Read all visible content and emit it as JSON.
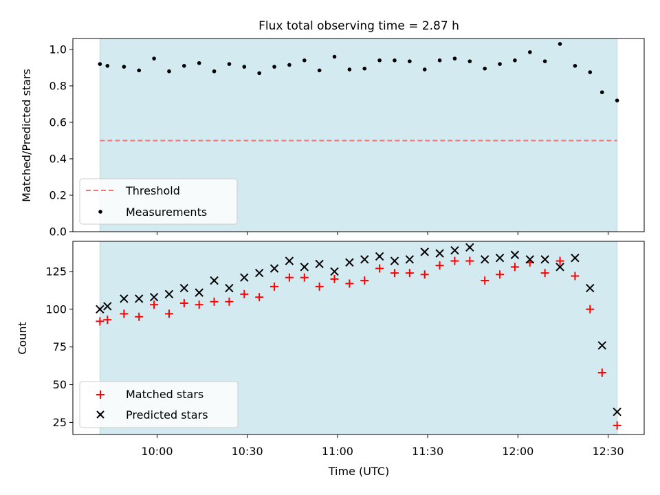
{
  "chart_data": [
    {
      "type": "scatter",
      "title": "Flux total observing time = 2.87 h",
      "xlabel": "",
      "ylabel": "Matched/Predicted stars",
      "ylim": [
        0.0,
        1.06
      ],
      "yticks": [
        0.0,
        0.2,
        0.4,
        0.6,
        0.8,
        1.0
      ],
      "ytick_labels": [
        "0.0",
        "0.2",
        "0.4",
        "0.6",
        "0.8",
        "1.0"
      ],
      "xlim_minutes": [
        572,
        762
      ],
      "xticks_minutes": [
        600,
        630,
        660,
        690,
        720,
        750
      ],
      "shaded_span_minutes": [
        581,
        753
      ],
      "threshold": 0.5,
      "legend_loc": "lower-left",
      "legend": [
        "Threshold",
        "Measurements"
      ],
      "series": [
        {
          "name": "Measurements",
          "x": [
            581,
            583.5,
            589,
            594,
            599,
            604,
            609,
            614,
            619,
            624,
            629,
            634,
            639,
            644,
            649,
            654,
            659,
            664,
            669,
            674,
            679,
            684,
            689,
            694,
            699,
            704,
            709,
            714,
            719,
            724,
            729,
            734,
            739,
            744,
            748,
            753
          ],
          "y": [
            0.92,
            0.91,
            0.905,
            0.885,
            0.95,
            0.88,
            0.91,
            0.925,
            0.88,
            0.92,
            0.905,
            0.87,
            0.905,
            0.915,
            0.94,
            0.885,
            0.96,
            0.89,
            0.895,
            0.94,
            0.94,
            0.935,
            0.89,
            0.94,
            0.95,
            0.935,
            0.895,
            0.92,
            0.94,
            0.985,
            0.935,
            1.03,
            0.91,
            0.875,
            0.765,
            0.72
          ]
        }
      ]
    },
    {
      "type": "scatter",
      "title": "",
      "xlabel": "Time (UTC)",
      "ylabel": "Count",
      "ylim": [
        17,
        145
      ],
      "yticks": [
        25,
        50,
        75,
        100,
        125
      ],
      "ytick_labels": [
        "25",
        "50",
        "75",
        "100",
        "125"
      ],
      "xlim_minutes": [
        572,
        762
      ],
      "xticks_minutes": [
        600,
        630,
        660,
        690,
        720,
        750
      ],
      "xtick_labels": [
        "10:00",
        "10:30",
        "11:00",
        "11:30",
        "12:00",
        "12:30"
      ],
      "shaded_span_minutes": [
        581,
        753
      ],
      "legend_loc": "lower-left",
      "legend": [
        "Matched stars",
        "Predicted stars"
      ],
      "series": [
        {
          "name": "Matched stars",
          "marker": "+",
          "x": [
            581,
            583.5,
            589,
            594,
            599,
            604,
            609,
            614,
            619,
            624,
            629,
            634,
            639,
            644,
            649,
            654,
            659,
            664,
            669,
            674,
            679,
            684,
            689,
            694,
            699,
            704,
            709,
            714,
            719,
            724,
            729,
            734,
            739,
            744,
            748,
            753
          ],
          "y": [
            92,
            93,
            97,
            95,
            103,
            97,
            104,
            103,
            105,
            105,
            110,
            108,
            115,
            121,
            121,
            115,
            120,
            117,
            119,
            127,
            124,
            124,
            123,
            129,
            132,
            132,
            119,
            123,
            128,
            131,
            124,
            132,
            122,
            100,
            58,
            23
          ]
        },
        {
          "name": "Predicted stars",
          "marker": "x",
          "x": [
            581,
            583.5,
            589,
            594,
            599,
            604,
            609,
            614,
            619,
            624,
            629,
            634,
            639,
            644,
            649,
            654,
            659,
            664,
            669,
            674,
            679,
            684,
            689,
            694,
            699,
            704,
            709,
            714,
            719,
            724,
            729,
            734,
            739,
            744,
            748,
            753
          ],
          "y": [
            100,
            102,
            107,
            107,
            108,
            110,
            114,
            111,
            119,
            114,
            121,
            124,
            127,
            132,
            128,
            130,
            125,
            131,
            133,
            135,
            132,
            133,
            138,
            137,
            139,
            141,
            133,
            134,
            136,
            133,
            133,
            128,
            134,
            114,
            76,
            32
          ]
        }
      ]
    }
  ],
  "colors": {
    "shade": "#d4eaf1",
    "threshold": "#f07272",
    "measurement": "#000000",
    "matched": "#ff0000",
    "predicted": "#000000"
  }
}
